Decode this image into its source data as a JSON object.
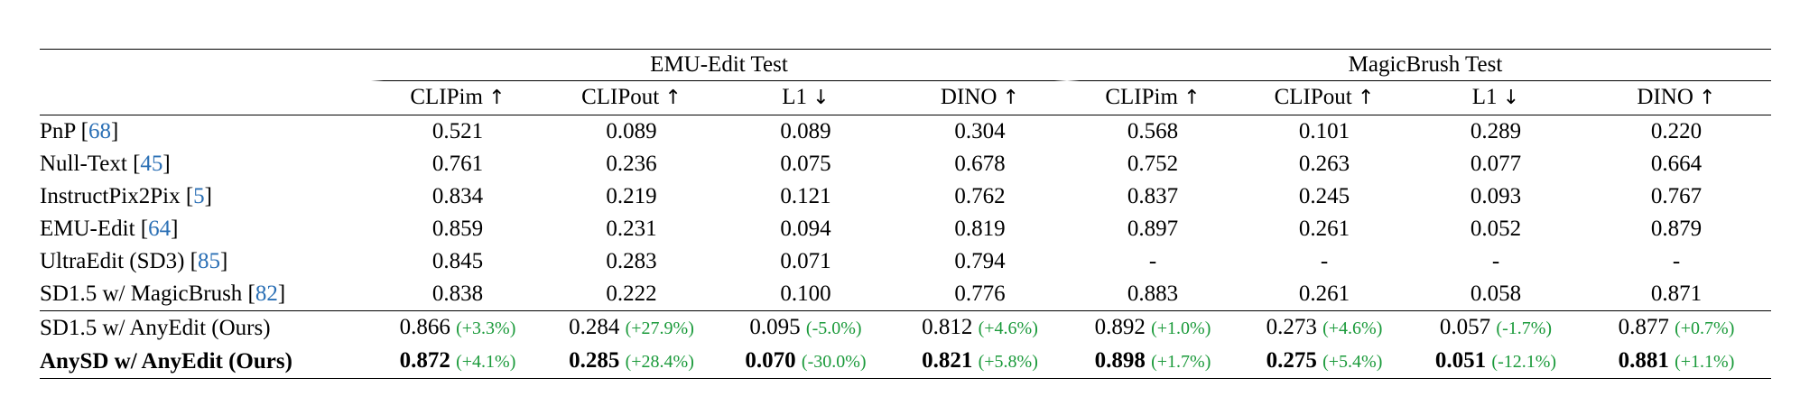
{
  "table": {
    "groups": [
      {
        "label": "EMU-Edit Test"
      },
      {
        "label": "MagicBrush Test"
      }
    ],
    "metrics": [
      {
        "name": "CLIPim",
        "arrow": "↑"
      },
      {
        "name": "CLIPout",
        "arrow": "↑"
      },
      {
        "name": "L1",
        "arrow": "↓"
      },
      {
        "name": "DINO",
        "arrow": "↑"
      },
      {
        "name": "CLIPim",
        "arrow": "↑"
      },
      {
        "name": "CLIPout",
        "arrow": "↑"
      },
      {
        "name": "L1",
        "arrow": "↓"
      },
      {
        "name": "DINO",
        "arrow": "↑"
      }
    ],
    "rows": [
      {
        "method": "PnP [",
        "cite": "68",
        "close": "]",
        "values": [
          {
            "v": "0.521"
          },
          {
            "v": "0.089"
          },
          {
            "v": "0.089"
          },
          {
            "v": "0.304"
          },
          {
            "v": "0.568"
          },
          {
            "v": "0.101"
          },
          {
            "v": "0.289"
          },
          {
            "v": "0.220"
          }
        ]
      },
      {
        "method": "Null-Text [",
        "cite": "45",
        "close": "]",
        "values": [
          {
            "v": "0.761"
          },
          {
            "v": "0.236"
          },
          {
            "v": "0.075"
          },
          {
            "v": "0.678"
          },
          {
            "v": "0.752"
          },
          {
            "v": "0.263"
          },
          {
            "v": "0.077"
          },
          {
            "v": "0.664"
          }
        ]
      },
      {
        "method": "InstructPix2Pix [",
        "cite": "5",
        "close": "]",
        "values": [
          {
            "v": "0.834"
          },
          {
            "v": "0.219"
          },
          {
            "v": "0.121"
          },
          {
            "v": "0.762"
          },
          {
            "v": "0.837"
          },
          {
            "v": "0.245"
          },
          {
            "v": "0.093"
          },
          {
            "v": "0.767"
          }
        ]
      },
      {
        "method": "EMU-Edit [",
        "cite": "64",
        "close": "]",
        "values": [
          {
            "v": "0.859"
          },
          {
            "v": "0.231"
          },
          {
            "v": "0.094"
          },
          {
            "v": "0.819"
          },
          {
            "v": "0.897"
          },
          {
            "v": "0.261"
          },
          {
            "v": "0.052"
          },
          {
            "v": "0.879"
          }
        ]
      },
      {
        "method": "UltraEdit (SD3) [",
        "cite": "85",
        "close": "]",
        "values": [
          {
            "v": "0.845"
          },
          {
            "v": "0.283"
          },
          {
            "v": "0.071"
          },
          {
            "v": "0.794"
          },
          {
            "v": "-"
          },
          {
            "v": "-"
          },
          {
            "v": "-"
          },
          {
            "v": "-"
          }
        ]
      },
      {
        "method": "SD1.5 w/ MagicBrush [",
        "cite": "82",
        "close": "]",
        "values": [
          {
            "v": "0.838"
          },
          {
            "v": "0.222"
          },
          {
            "v": "0.100"
          },
          {
            "v": "0.776"
          },
          {
            "v": "0.883"
          },
          {
            "v": "0.261"
          },
          {
            "v": "0.058"
          },
          {
            "v": "0.871"
          }
        ]
      }
    ],
    "ours_rows": [
      {
        "method": "SD1.5 w/ AnyEdit (Ours)",
        "values": [
          {
            "v": "0.866",
            "d": "(+3.3%)"
          },
          {
            "v": "0.284",
            "d": "(+27.9%)"
          },
          {
            "v": "0.095",
            "d": "(-5.0%)"
          },
          {
            "v": "0.812",
            "d": "(+4.6%)"
          },
          {
            "v": "0.892",
            "d": "(+1.0%)"
          },
          {
            "v": "0.273",
            "d": "(+4.6%)"
          },
          {
            "v": "0.057",
            "d": "(-1.7%)"
          },
          {
            "v": "0.877",
            "d": " (+0.7%)"
          }
        ]
      },
      {
        "method": "AnySD w/ AnyEdit (Ours)",
        "values": [
          {
            "v": "0.872",
            "d": "(+4.1%)"
          },
          {
            "v": "0.285",
            "d": "(+28.4%)"
          },
          {
            "v": "0.070",
            "d": "(-30.0%)"
          },
          {
            "v": "0.821",
            "d": "(+5.8%)"
          },
          {
            "v": "0.898",
            "d": "(+1.7%)"
          },
          {
            "v": "0.275",
            "d": "(+5.4%)"
          },
          {
            "v": "0.051",
            "d": "(-12.1%)"
          },
          {
            "v": "0.881",
            "d": "(+1.1%)"
          }
        ]
      }
    ],
    "colors": {
      "citation": "#2a6fb5",
      "delta": "#1a9a3a"
    }
  }
}
